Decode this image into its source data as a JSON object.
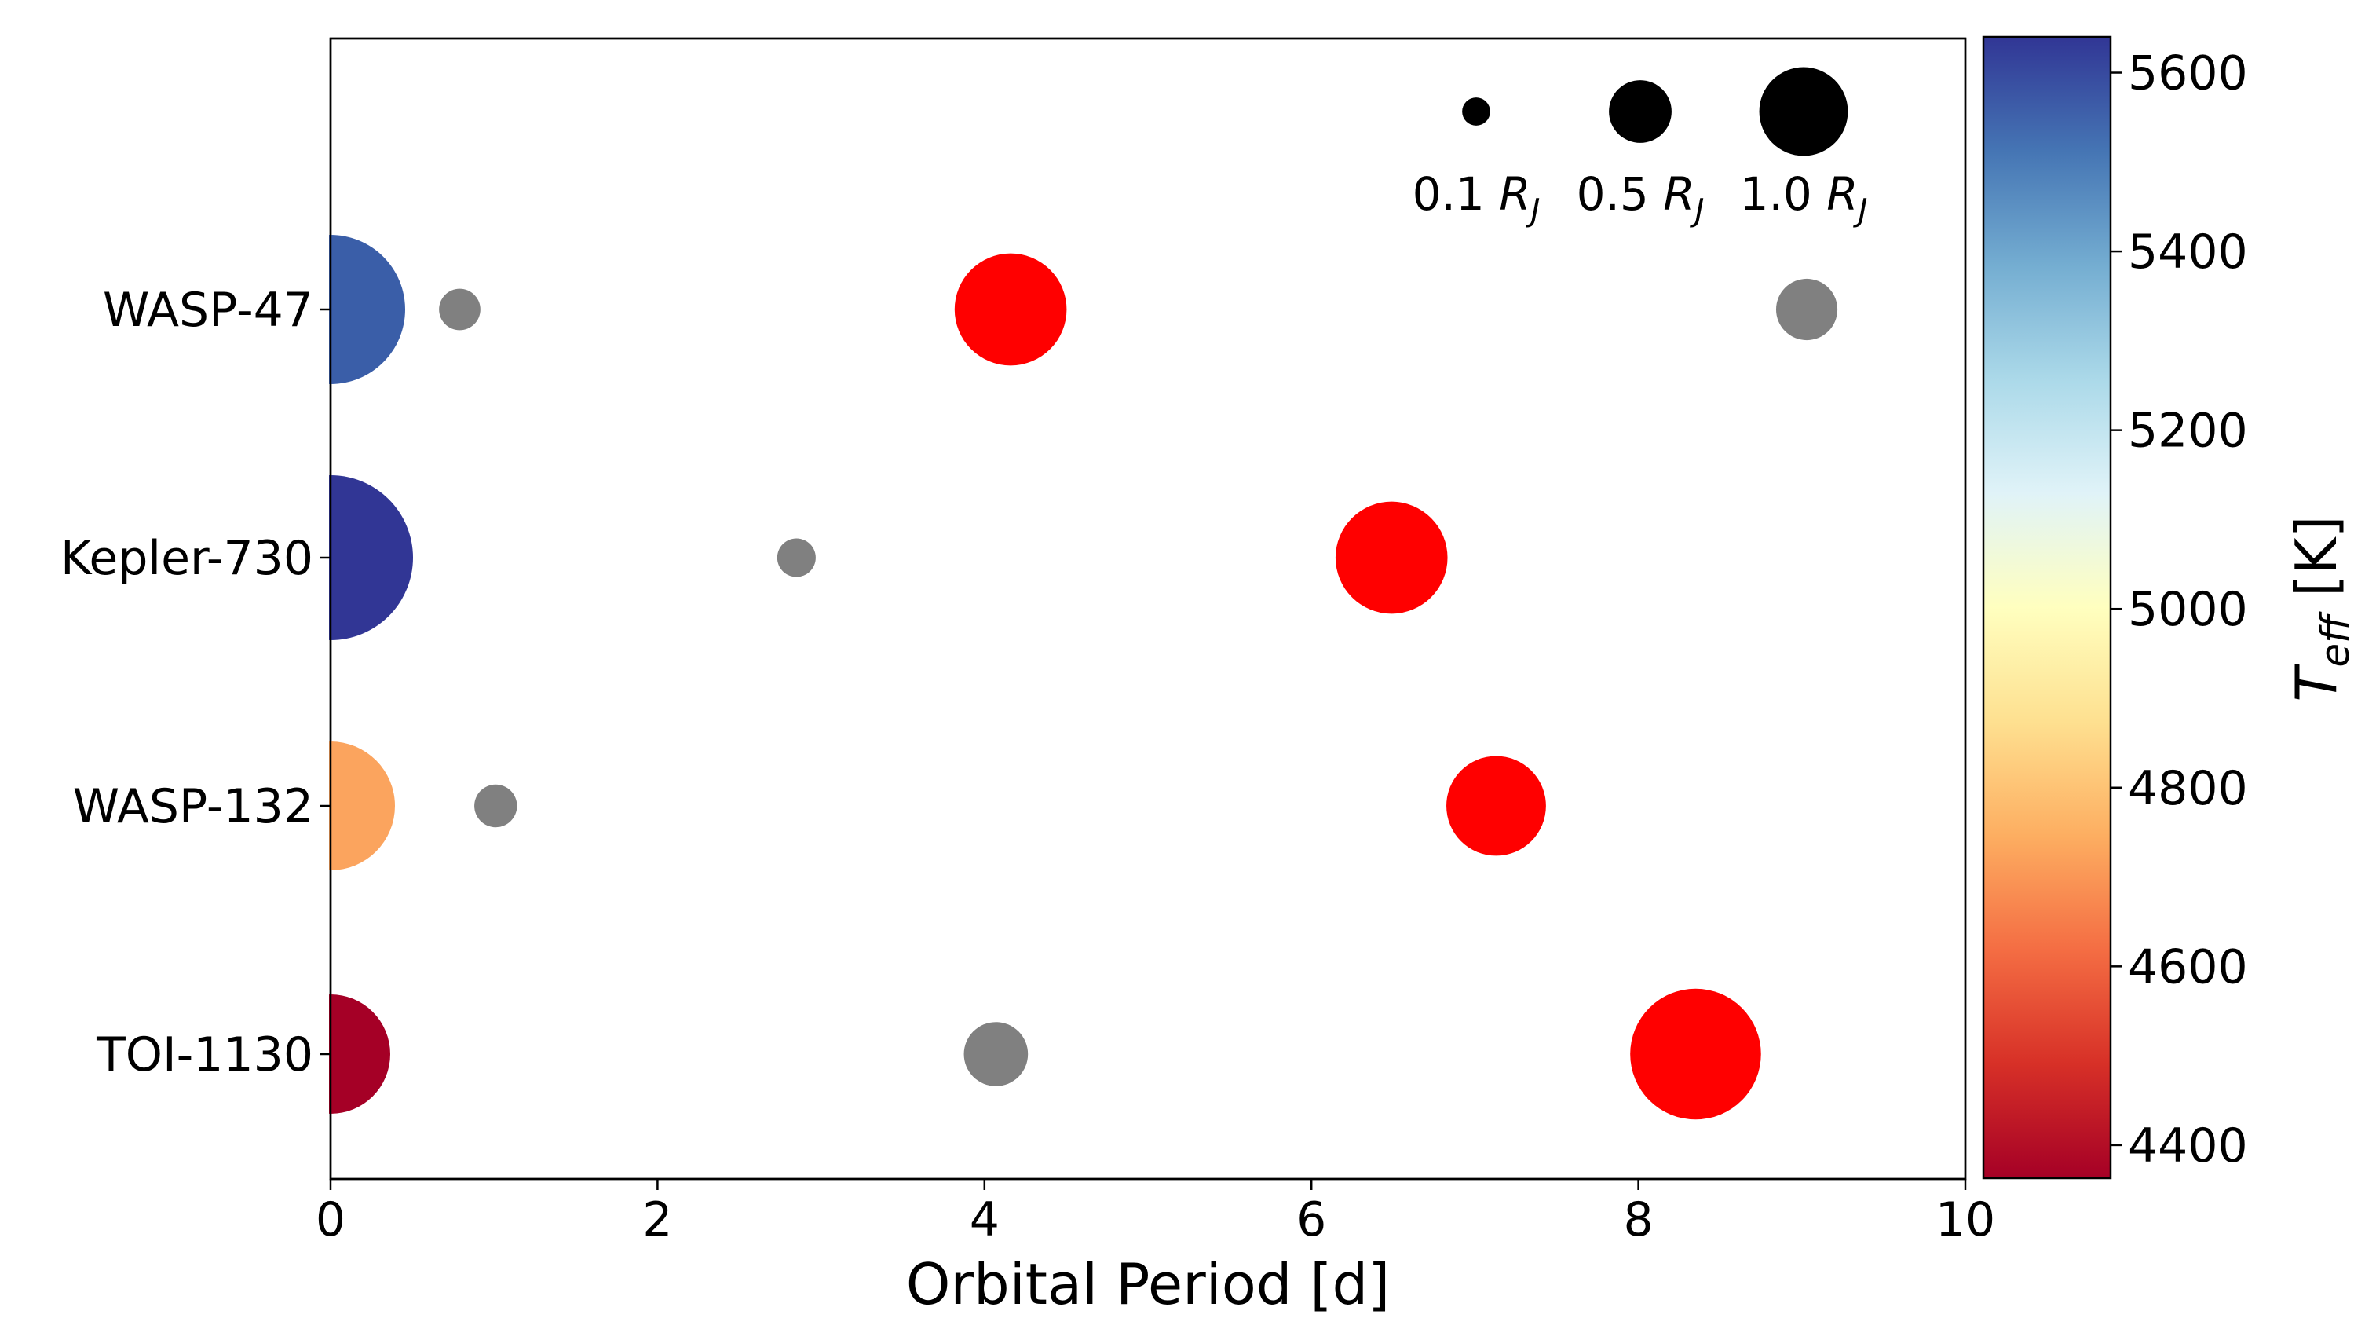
{
  "chart_data": {
    "type": "scatter",
    "title": "",
    "xlabel": "Orbital Period [d]",
    "xlim": [
      0,
      10
    ],
    "xticks": [
      "0",
      "2",
      "4",
      "6",
      "8",
      "10"
    ],
    "systems": [
      "WASP-47",
      "Kepler-730",
      "WASP-132",
      "TOI-1130"
    ],
    "stars": [
      {
        "system": "WASP-47",
        "x": 0,
        "teff": 5500,
        "color": "#3a5ea8"
      },
      {
        "system": "Kepler-730",
        "x": 0,
        "teff": 5620,
        "color": "#313695"
      },
      {
        "system": "WASP-132",
        "x": 0,
        "teff": 4750,
        "color": "#fba45e"
      },
      {
        "system": "TOI-1130",
        "x": 0,
        "teff": 4400,
        "color": "#a50026"
      }
    ],
    "planets": [
      {
        "system": "WASP-47",
        "period": 0.79,
        "radius": 0.15,
        "type": "small",
        "color": "#808080"
      },
      {
        "system": "WASP-47",
        "period": 4.16,
        "radius": 1.1,
        "type": "hot-jupiter",
        "color": "#ff0000"
      },
      {
        "system": "WASP-47",
        "period": 9.03,
        "radius": 0.33,
        "type": "small",
        "color": "#808080"
      },
      {
        "system": "Kepler-730",
        "period": 2.85,
        "radius": 0.13,
        "type": "small",
        "color": "#808080"
      },
      {
        "system": "Kepler-730",
        "period": 6.49,
        "radius": 1.1,
        "type": "hot-jupiter",
        "color": "#ff0000"
      },
      {
        "system": "WASP-132",
        "period": 1.01,
        "radius": 0.16,
        "type": "small",
        "color": "#808080"
      },
      {
        "system": "WASP-132",
        "period": 7.13,
        "radius": 0.87,
        "type": "hot-jupiter",
        "color": "#ff0000"
      },
      {
        "system": "TOI-1130",
        "period": 4.07,
        "radius": 0.36,
        "type": "small",
        "color": "#808080"
      },
      {
        "system": "TOI-1130",
        "period": 8.35,
        "radius": 1.5,
        "type": "hot-jupiter",
        "color": "#ff0000"
      }
    ],
    "size_legend": {
      "placement": "top-right",
      "entries": [
        {
          "radius": 0.1,
          "label": "0.1"
        },
        {
          "radius": 0.5,
          "label": "0.5"
        },
        {
          "radius": 1.0,
          "label": "1.0"
        }
      ],
      "unit_main": "R",
      "unit_sub": "J",
      "marker_color": "#000000"
    },
    "colorbar": {
      "label_main": "T",
      "label_sub": "eff",
      "label_unit": "[K]",
      "range": [
        4363,
        5640
      ],
      "ticks": [
        "4400",
        "4600",
        "4800",
        "5000",
        "5200",
        "5400",
        "5600"
      ],
      "colormap": "RdYlBu",
      "stops": [
        "#a50026",
        "#d73027",
        "#f46d43",
        "#fdae61",
        "#fee090",
        "#ffffbf",
        "#e0f3f8",
        "#abd9e9",
        "#74add1",
        "#4575b4",
        "#313695"
      ]
    },
    "grid": false
  }
}
